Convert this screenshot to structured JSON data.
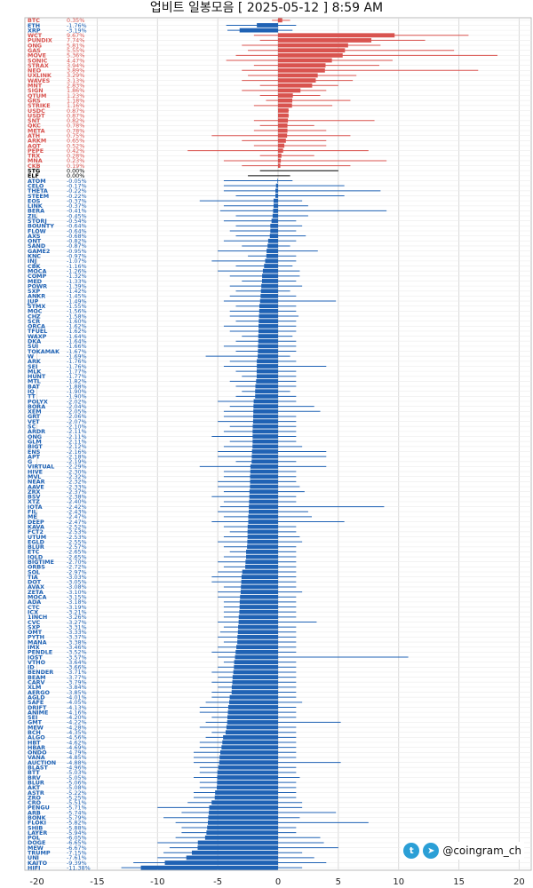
{
  "title": "업비트 일봉모음 [ 2025-05-12 ]  8:59 AM",
  "watermark": {
    "handle": "@coingram_ch",
    "icons": [
      "twitter-icon",
      "telegram-icon"
    ]
  },
  "colors": {
    "up": "#d9534f",
    "down": "#1f62b4",
    "flat": "#000000",
    "grid": "#d9d9d9"
  },
  "chart_data": {
    "type": "bar",
    "orientation": "horizontal",
    "xlim": [
      -21,
      21
    ],
    "xticks": [
      -20,
      -15,
      -10,
      -5,
      0,
      5,
      10,
      15,
      20
    ],
    "grid": true,
    "bars": [
      {
        "name": "BTC",
        "change": 0.35,
        "low": -0.5,
        "high": 1.0
      },
      {
        "name": "ETH",
        "change": -1.76,
        "low": -4.3,
        "high": 1.5
      },
      {
        "name": "XRP",
        "change": -3.19,
        "low": -4.2,
        "high": 1.2
      },
      {
        "name": "WCT",
        "change": 9.67,
        "low": -2.0,
        "high": 15.8
      },
      {
        "name": "PUNDIX",
        "change": 7.74,
        "low": -1.5,
        "high": 12.2
      },
      {
        "name": "ONG",
        "change": 5.81,
        "low": -3.0,
        "high": 8.5
      },
      {
        "name": "GAS",
        "change": 5.55,
        "low": -2.5,
        "high": 14.6
      },
      {
        "name": "MOVE",
        "change": 5.36,
        "low": -3.5,
        "high": 18.2
      },
      {
        "name": "SONIC",
        "change": 4.47,
        "low": -4.3,
        "high": 9.5
      },
      {
        "name": "STRAX",
        "change": 3.94,
        "low": -2.0,
        "high": 8.4
      },
      {
        "name": "NEO",
        "change": 3.89,
        "low": -3.0,
        "high": 16.6
      },
      {
        "name": "UXLINK",
        "change": 3.29,
        "low": -2.5,
        "high": 6.5
      },
      {
        "name": "WAVES",
        "change": 3.13,
        "low": -3.0,
        "high": 6.2
      },
      {
        "name": "MNT",
        "change": 2.83,
        "low": -1.5,
        "high": 5.0
      },
      {
        "name": "SIGN",
        "change": 1.86,
        "low": -3.0,
        "high": 4.0
      },
      {
        "name": "QTUM",
        "change": 1.23,
        "low": -1.5,
        "high": 3.5
      },
      {
        "name": "GRS",
        "change": 1.18,
        "low": -1.0,
        "high": 6.0
      },
      {
        "name": "STRIKE",
        "change": 1.16,
        "low": -2.0,
        "high": 4.5
      },
      {
        "name": "USDC",
        "change": 0.87,
        "low": 0.0,
        "high": 0.9
      },
      {
        "name": "USDT",
        "change": 0.87,
        "low": 0.0,
        "high": 0.9
      },
      {
        "name": "SNT",
        "change": 0.82,
        "low": -2.0,
        "high": 8.0
      },
      {
        "name": "QKC",
        "change": 0.78,
        "low": -1.5,
        "high": 3.0
      },
      {
        "name": "META",
        "change": 0.78,
        "low": -2.0,
        "high": 4.0
      },
      {
        "name": "ATH",
        "change": 0.75,
        "low": -5.5,
        "high": 6.0
      },
      {
        "name": "ARKM",
        "change": 0.65,
        "low": -3.0,
        "high": 4.0
      },
      {
        "name": "AQT",
        "change": 0.52,
        "low": -2.0,
        "high": 4.0
      },
      {
        "name": "PEPE",
        "change": 0.42,
        "low": -7.5,
        "high": 7.5
      },
      {
        "name": "TRX",
        "change": 0.28,
        "low": -1.5,
        "high": 3.0
      },
      {
        "name": "MNA",
        "change": 0.23,
        "low": -4.5,
        "high": 9.0
      },
      {
        "name": "CKB",
        "change": 0.19,
        "low": -3.0,
        "high": 6.0
      },
      {
        "name": "STG",
        "change": 0.0,
        "low": -1.5,
        "high": 5.0
      },
      {
        "name": "ELF",
        "change": 0.0,
        "low": -2.5,
        "high": 1.0
      },
      {
        "name": "ATOM",
        "change": -0.05,
        "low": -4.5,
        "high": 1.2
      },
      {
        "name": "CELO",
        "change": -0.17,
        "low": -4.5,
        "high": 5.5
      },
      {
        "name": "THETA",
        "change": -0.22,
        "low": -4.5,
        "high": 8.5
      },
      {
        "name": "STEEM",
        "change": -0.22,
        "low": -3.5,
        "high": 5.5
      },
      {
        "name": "EOS",
        "change": -0.37,
        "low": -6.5,
        "high": 2.0
      },
      {
        "name": "LINK",
        "change": -0.37,
        "low": -4.5,
        "high": 2.5
      },
      {
        "name": "BERA",
        "change": -0.41,
        "low": -4.8,
        "high": 9.0
      },
      {
        "name": "ZIL",
        "change": -0.45,
        "low": -3.5,
        "high": 2.5
      },
      {
        "name": "STORJ",
        "change": -0.54,
        "low": -4.5,
        "high": 1.5
      },
      {
        "name": "BOUNTY",
        "change": -0.64,
        "low": -3.5,
        "high": 2.0
      },
      {
        "name": "FLOW",
        "change": -0.64,
        "low": -4.0,
        "high": 1.5
      },
      {
        "name": "AXS",
        "change": -0.68,
        "low": -3.5,
        "high": 2.3
      },
      {
        "name": "ONT",
        "change": -0.82,
        "low": -4.5,
        "high": 1.5
      },
      {
        "name": "SAND",
        "change": -0.87,
        "low": -3.0,
        "high": 1.0
      },
      {
        "name": "GAME2",
        "change": -0.95,
        "low": -5.0,
        "high": 3.3
      },
      {
        "name": "KNC",
        "change": -0.97,
        "low": -2.5,
        "high": 1.5
      },
      {
        "name": "INJ",
        "change": -1.07,
        "low": -5.5,
        "high": 1.5
      },
      {
        "name": "CBK",
        "change": -1.16,
        "low": -3.5,
        "high": 1.2
      },
      {
        "name": "MOCA",
        "change": -1.26,
        "low": -5.0,
        "high": 1.8
      },
      {
        "name": "COMP",
        "change": -1.32,
        "low": -4.0,
        "high": 1.8
      },
      {
        "name": "MED",
        "change": -1.33,
        "low": -3.0,
        "high": 1.5
      },
      {
        "name": "POWR",
        "change": -1.39,
        "low": -4.0,
        "high": 2.0
      },
      {
        "name": "SXP",
        "change": -1.42,
        "low": -3.5,
        "high": 1.0
      },
      {
        "name": "ANKR",
        "change": -1.45,
        "low": -4.0,
        "high": 1.5
      },
      {
        "name": "JUP",
        "change": -1.49,
        "low": -4.5,
        "high": 4.8
      },
      {
        "name": "STMX",
        "change": -1.55,
        "low": -3.5,
        "high": 1.5
      },
      {
        "name": "MOC",
        "change": -1.56,
        "low": -4.0,
        "high": 1.5
      },
      {
        "name": "CHZ",
        "change": -1.58,
        "low": -4.0,
        "high": 1.7
      },
      {
        "name": "SCR",
        "change": -1.6,
        "low": -3.5,
        "high": 1.5
      },
      {
        "name": "ORCA",
        "change": -1.62,
        "low": -4.5,
        "high": 1.5
      },
      {
        "name": "TFUEL",
        "change": -1.62,
        "low": -4.0,
        "high": 1.5
      },
      {
        "name": "WAXP",
        "change": -1.64,
        "low": -3.0,
        "high": 1.2
      },
      {
        "name": "DKA",
        "change": -1.64,
        "low": -3.5,
        "high": 1.5
      },
      {
        "name": "SUI",
        "change": -1.66,
        "low": -4.5,
        "high": 1.5
      },
      {
        "name": "TOKAMAK",
        "change": -1.67,
        "low": -3.5,
        "high": 1.5
      },
      {
        "name": "W",
        "change": -1.69,
        "low": -6.0,
        "high": 1.0
      },
      {
        "name": "ARK",
        "change": -1.76,
        "low": -4.0,
        "high": 1.5
      },
      {
        "name": "SEI",
        "change": -1.76,
        "low": -4.5,
        "high": 4.0
      },
      {
        "name": "MLK",
        "change": -1.77,
        "low": -3.5,
        "high": 1.5
      },
      {
        "name": "HUNT",
        "change": -1.77,
        "low": -3.0,
        "high": 1.5
      },
      {
        "name": "MTL",
        "change": -1.82,
        "low": -4.0,
        "high": 1.5
      },
      {
        "name": "BAT",
        "change": -1.88,
        "low": -3.5,
        "high": 1.5
      },
      {
        "name": "IQ",
        "change": -1.9,
        "low": -3.0,
        "high": 1.0
      },
      {
        "name": "TT",
        "change": -1.9,
        "low": -3.5,
        "high": 1.5
      },
      {
        "name": "POLYX",
        "change": -2.02,
        "low": -5.0,
        "high": 1.5
      },
      {
        "name": "BORA",
        "change": -2.04,
        "low": -4.0,
        "high": 3.0
      },
      {
        "name": "XEM",
        "change": -2.05,
        "low": -4.5,
        "high": 3.5
      },
      {
        "name": "GRT",
        "change": -2.06,
        "low": -4.5,
        "high": 1.5
      },
      {
        "name": "VET",
        "change": -2.07,
        "low": -5.0,
        "high": 1.5
      },
      {
        "name": "SC",
        "change": -2.1,
        "low": -4.0,
        "high": 1.5
      },
      {
        "name": "ARDR",
        "change": -2.11,
        "low": -4.5,
        "high": 1.5
      },
      {
        "name": "ONG",
        "change": -2.11,
        "low": -5.5,
        "high": 1.5
      },
      {
        "name": "GLM",
        "change": -2.11,
        "low": -4.0,
        "high": 1.5
      },
      {
        "name": "BIGT",
        "change": -2.12,
        "low": -4.5,
        "high": 2.0
      },
      {
        "name": "ENS",
        "change": -2.16,
        "low": -5.0,
        "high": 4.0
      },
      {
        "name": "APT",
        "change": -2.18,
        "low": -5.0,
        "high": 4.0
      },
      {
        "name": "G",
        "change": -2.19,
        "low": -3.5,
        "high": 1.5
      },
      {
        "name": "VIRTUAL",
        "change": -2.29,
        "low": -6.5,
        "high": 4.0
      },
      {
        "name": "HIVE",
        "change": -2.3,
        "low": -4.5,
        "high": 1.5
      },
      {
        "name": "MVL",
        "change": -2.32,
        "low": -4.5,
        "high": 1.5
      },
      {
        "name": "NEAR",
        "change": -2.32,
        "low": -5.0,
        "high": 1.5
      },
      {
        "name": "AAVE",
        "change": -2.33,
        "low": -5.0,
        "high": 1.8
      },
      {
        "name": "ZRX",
        "change": -2.37,
        "low": -4.5,
        "high": 2.2
      },
      {
        "name": "BSV",
        "change": -2.38,
        "low": -5.5,
        "high": 1.5
      },
      {
        "name": "XTZ",
        "change": -2.4,
        "low": -4.5,
        "high": 1.5
      },
      {
        "name": "IOTA",
        "change": -2.42,
        "low": -4.8,
        "high": 8.8
      },
      {
        "name": "FIL",
        "change": -2.43,
        "low": -5.0,
        "high": 2.5
      },
      {
        "name": "ME",
        "change": -2.47,
        "low": -4.5,
        "high": 2.8
      },
      {
        "name": "DEEP",
        "change": -2.47,
        "low": -5.5,
        "high": 5.5
      },
      {
        "name": "KAVA",
        "change": -2.52,
        "low": -4.5,
        "high": 1.5
      },
      {
        "name": "FCT2",
        "change": -2.53,
        "low": -4.0,
        "high": 1.5
      },
      {
        "name": "UTUM",
        "change": -2.53,
        "low": -4.5,
        "high": 1.8
      },
      {
        "name": "EGLD",
        "change": -2.55,
        "low": -5.0,
        "high": 2.0
      },
      {
        "name": "BLUR",
        "change": -2.57,
        "low": -4.5,
        "high": 1.5
      },
      {
        "name": "ETC",
        "change": -2.65,
        "low": -4.0,
        "high": 1.5
      },
      {
        "name": "IQLD",
        "change": -2.65,
        "low": -4.5,
        "high": 1.5
      },
      {
        "name": "BIGTIME",
        "change": -2.7,
        "low": -5.0,
        "high": 1.5
      },
      {
        "name": "ORBS",
        "change": -2.72,
        "low": -4.5,
        "high": 1.5
      },
      {
        "name": "SOL",
        "change": -2.97,
        "low": -5.0,
        "high": 1.5
      },
      {
        "name": "TIA",
        "change": -3.03,
        "low": -5.5,
        "high": 1.5
      },
      {
        "name": "DOT",
        "change": -3.05,
        "low": -5.5,
        "high": 1.5
      },
      {
        "name": "AVAX",
        "change": -3.08,
        "low": -4.5,
        "high": 1.5
      },
      {
        "name": "ZETA",
        "change": -3.1,
        "low": -5.0,
        "high": 2.0
      },
      {
        "name": "MOCA",
        "change": -3.15,
        "low": -5.0,
        "high": 1.5
      },
      {
        "name": "ADA",
        "change": -3.18,
        "low": -4.5,
        "high": 1.5
      },
      {
        "name": "CTC",
        "change": -3.19,
        "low": -4.5,
        "high": 1.5
      },
      {
        "name": "ICX",
        "change": -3.21,
        "low": -4.5,
        "high": 1.5
      },
      {
        "name": "1INCH",
        "change": -3.26,
        "low": -4.5,
        "high": 1.5
      },
      {
        "name": "CVC",
        "change": -3.27,
        "low": -5.0,
        "high": 3.2
      },
      {
        "name": "SXP",
        "change": -3.31,
        "low": -4.5,
        "high": 1.5
      },
      {
        "name": "OMT",
        "change": -3.33,
        "low": -4.8,
        "high": 1.5
      },
      {
        "name": "PYTH",
        "change": -3.37,
        "low": -5.0,
        "high": 1.5
      },
      {
        "name": "MANA",
        "change": -3.38,
        "low": -4.5,
        "high": 1.5
      },
      {
        "name": "IMX",
        "change": -3.46,
        "low": -5.0,
        "high": 1.5
      },
      {
        "name": "PENDLE",
        "change": -3.52,
        "low": -5.5,
        "high": 1.5
      },
      {
        "name": "IOST",
        "change": -3.57,
        "low": -5.0,
        "high": 10.8
      },
      {
        "name": "VTHO",
        "change": -3.64,
        "low": -4.5,
        "high": 1.5
      },
      {
        "name": "ID",
        "change": -3.66,
        "low": -5.0,
        "high": 1.5
      },
      {
        "name": "BENDER",
        "change": -3.71,
        "low": -5.5,
        "high": 1.5
      },
      {
        "name": "BEAM",
        "change": -3.77,
        "low": -5.0,
        "high": 1.5
      },
      {
        "name": "CARV",
        "change": -3.79,
        "low": -5.5,
        "high": 1.5
      },
      {
        "name": "XLM",
        "change": -3.84,
        "low": -5.0,
        "high": 1.5
      },
      {
        "name": "AERGO",
        "change": -3.85,
        "low": -5.5,
        "high": 1.5
      },
      {
        "name": "AGLD",
        "change": -4.01,
        "low": -5.5,
        "high": 1.5
      },
      {
        "name": "SAFE",
        "change": -4.05,
        "low": -6.0,
        "high": 2.0
      },
      {
        "name": "DRIFT",
        "change": -4.13,
        "low": -6.5,
        "high": 1.5
      },
      {
        "name": "ANIME",
        "change": -4.16,
        "low": -6.5,
        "high": 1.5
      },
      {
        "name": "SEI",
        "change": -4.2,
        "low": -5.5,
        "high": 1.5
      },
      {
        "name": "GMT",
        "change": -4.22,
        "low": -6.0,
        "high": 5.2
      },
      {
        "name": "MEW",
        "change": -4.28,
        "low": -6.5,
        "high": 1.5
      },
      {
        "name": "BCH",
        "change": -4.35,
        "low": -5.5,
        "high": 1.5
      },
      {
        "name": "ALGO",
        "change": -4.56,
        "low": -6.0,
        "high": 1.5
      },
      {
        "name": "HBT",
        "change": -4.62,
        "low": -6.5,
        "high": 1.5
      },
      {
        "name": "HBAR",
        "change": -4.69,
        "low": -6.5,
        "high": 1.5
      },
      {
        "name": "ONDO",
        "change": -4.79,
        "low": -7.0,
        "high": 1.5
      },
      {
        "name": "VANA",
        "change": -4.85,
        "low": -7.0,
        "high": 1.5
      },
      {
        "name": "AUCTION",
        "change": -4.88,
        "low": -7.0,
        "high": 5.2
      },
      {
        "name": "BLAST",
        "change": -4.96,
        "low": -6.5,
        "high": 1.5
      },
      {
        "name": "BTT",
        "change": -5.03,
        "low": -6.5,
        "high": 1.5
      },
      {
        "name": "BRV",
        "change": -5.05,
        "low": -7.0,
        "high": 1.8
      },
      {
        "name": "BLUR",
        "change": -5.06,
        "low": -6.5,
        "high": 1.5
      },
      {
        "name": "AKT",
        "change": -5.08,
        "low": -6.5,
        "high": 1.5
      },
      {
        "name": "ASTR",
        "change": -5.22,
        "low": -7.0,
        "high": 1.5
      },
      {
        "name": "ZRO",
        "change": -5.25,
        "low": -7.0,
        "high": 1.5
      },
      {
        "name": "CRO",
        "change": -5.51,
        "low": -7.5,
        "high": 2.0
      },
      {
        "name": "PENGU",
        "change": -5.71,
        "low": -10.0,
        "high": 2.0
      },
      {
        "name": "ARB",
        "change": -5.74,
        "low": -8.0,
        "high": 4.8
      },
      {
        "name": "BONK",
        "change": -5.79,
        "low": -9.5,
        "high": 1.8
      },
      {
        "name": "FLOKI",
        "change": -5.82,
        "low": -8.5,
        "high": 7.5
      },
      {
        "name": "SHIB",
        "change": -5.88,
        "low": -8.0,
        "high": 1.5
      },
      {
        "name": "LAYER",
        "change": -5.94,
        "low": -8.0,
        "high": 1.5
      },
      {
        "name": "POL",
        "change": -6.05,
        "low": -8.5,
        "high": 3.5
      },
      {
        "name": "DOGE",
        "change": -6.65,
        "low": -10.0,
        "high": 3.8
      },
      {
        "name": "MEW",
        "change": -6.67,
        "low": -9.0,
        "high": 5.0
      },
      {
        "name": "TRUMP",
        "change": -7.15,
        "low": -9.5,
        "high": 2.0
      },
      {
        "name": "UNI",
        "change": -7.61,
        "low": -10.0,
        "high": 3.0
      },
      {
        "name": "KAITO",
        "change": -9.39,
        "low": -12.0,
        "high": 4.0
      },
      {
        "name": "HIFI",
        "change": -11.38,
        "low": -13.0,
        "high": 2.0
      }
    ]
  }
}
